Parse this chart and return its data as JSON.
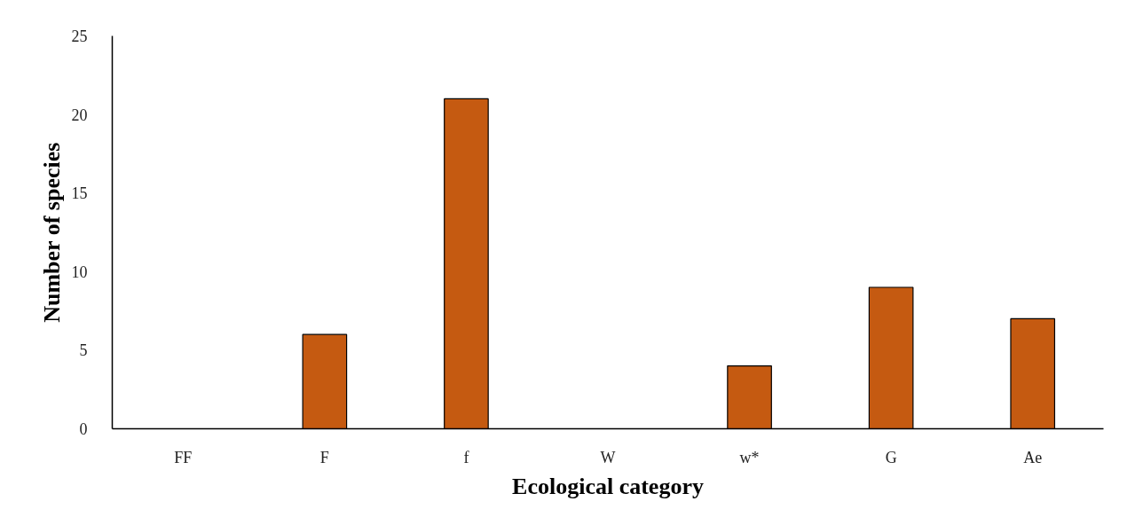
{
  "chart_data": {
    "type": "bar",
    "xlabel": "Ecological category",
    "ylabel": "Number of species",
    "categories": [
      "FF",
      "F",
      "f",
      "W",
      "w*",
      "G",
      "Ae"
    ],
    "values": [
      0,
      6,
      21,
      0,
      4,
      9,
      7
    ],
    "color": "#c55a11",
    "ylim": [
      0,
      25
    ],
    "yticks": [
      0,
      5,
      10,
      15,
      20,
      25
    ]
  }
}
